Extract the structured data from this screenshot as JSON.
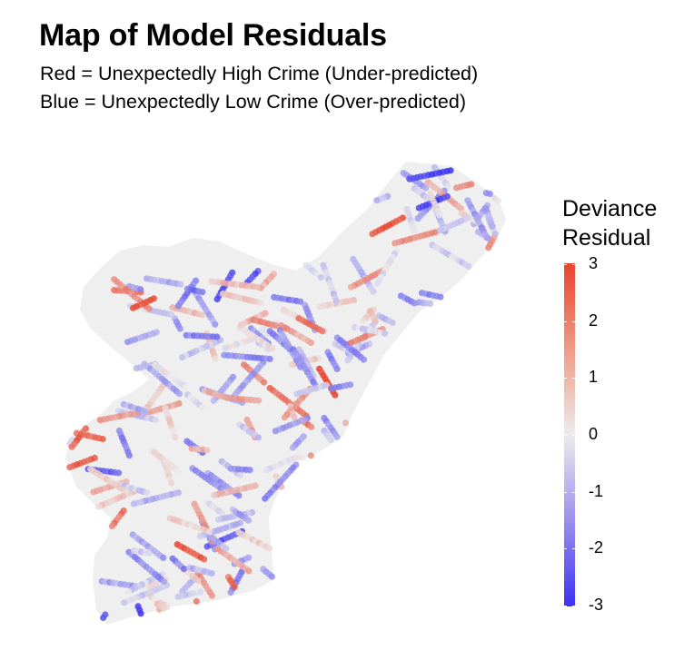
{
  "title": "Map of Model Residuals",
  "subtitle_line1": "Red = Unexpectedly High Crime (Under-predicted)",
  "subtitle_line2": "Blue = Unexpectedly Low Crime (Over-predicted)",
  "legend": {
    "title_line1": "Deviance",
    "title_line2": "Residual",
    "ticks": [
      "3",
      "2",
      "1",
      "0",
      "-1",
      "-2",
      "-3"
    ],
    "range": [
      -3,
      3
    ],
    "colors": {
      "low": "#3a32f0",
      "mid": "#ececec",
      "high": "#e8442e"
    }
  },
  "map": {
    "background_color": "#efefef",
    "point_value_range": [
      -3,
      3
    ],
    "description_free": true
  }
}
